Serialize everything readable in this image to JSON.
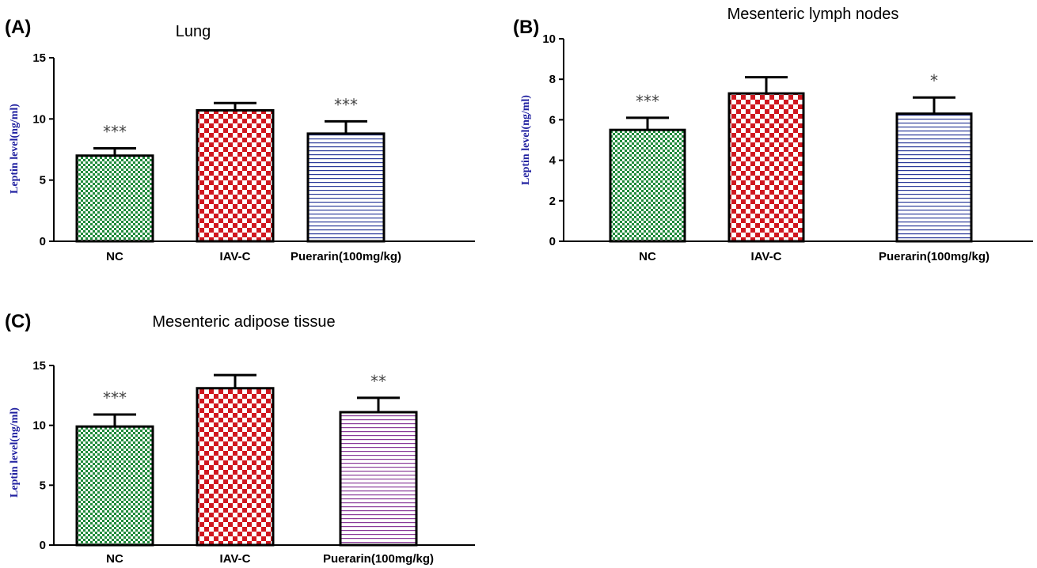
{
  "chart_data": [
    {
      "panel": "(A)",
      "type": "bar",
      "title": "Lung",
      "ylabel": "Leptin level(ng/ml)",
      "xlabel": "",
      "ylim": [
        0,
        15
      ],
      "yticks": [
        0,
        5,
        10,
        15
      ],
      "categories": [
        "NC",
        "IAV-C",
        "Puerarin(100mg/kg)"
      ],
      "values": [
        7.0,
        10.7,
        8.8
      ],
      "errors": [
        0.6,
        0.6,
        1.0
      ],
      "significance": [
        "***",
        "",
        "***"
      ],
      "patterns": [
        "green-check",
        "red-check",
        "blue-lines"
      ]
    },
    {
      "panel": "(B)",
      "type": "bar",
      "title": "Mesenteric lymph nodes",
      "ylabel": "Leptin level(ng/ml)",
      "xlabel": "",
      "ylim": [
        0,
        10
      ],
      "yticks": [
        0,
        2,
        4,
        6,
        8,
        10
      ],
      "categories": [
        "NC",
        "IAV-C",
        "Puerarin(100mg/kg)"
      ],
      "values": [
        5.5,
        7.3,
        6.3
      ],
      "errors": [
        0.6,
        0.8,
        0.8
      ],
      "significance": [
        "***",
        "",
        "*"
      ],
      "patterns": [
        "green-check",
        "red-check",
        "blue-lines"
      ]
    },
    {
      "panel": "(C)",
      "type": "bar",
      "title": "Mesenteric adipose tissue",
      "ylabel": "Leptin level(ng/ml)",
      "xlabel": "",
      "ylim": [
        0,
        15
      ],
      "yticks": [
        0,
        5,
        10,
        15
      ],
      "categories": [
        "NC",
        "IAV-C",
        "Puerarin(100mg/kg)"
      ],
      "values": [
        9.9,
        13.1,
        11.1
      ],
      "errors": [
        1.0,
        1.1,
        1.2
      ],
      "significance": [
        "***",
        "",
        "**"
      ],
      "patterns": [
        "green-check",
        "red-check",
        "purple-lines"
      ]
    }
  ],
  "colors": {
    "green": "#1f8a3a",
    "red": "#d0171f",
    "blue": "#2b3a9a",
    "purple": "#8a3a9a",
    "ylabel": "#2020a0"
  }
}
